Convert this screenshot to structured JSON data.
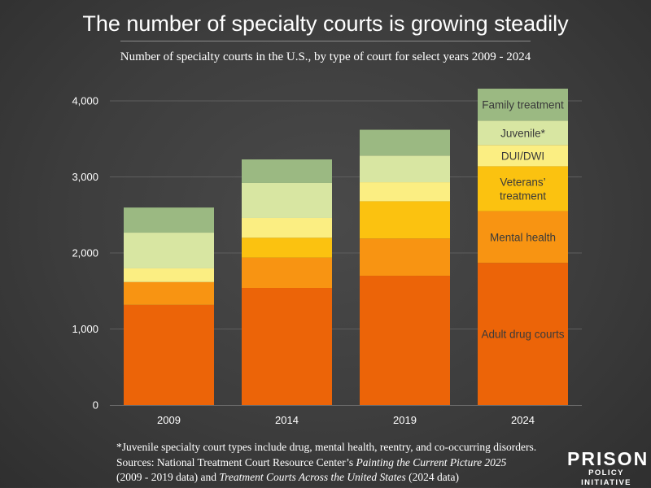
{
  "title": "The number of specialty courts is growing steadily",
  "subtitle": "Number of specialty courts in the U.S., by type of court for select years 2009 - 2024",
  "chart_data": {
    "type": "bar",
    "stacked": true,
    "categories": [
      "2009",
      "2014",
      "2019",
      "2024"
    ],
    "series": [
      {
        "name": "Adult drug courts",
        "label_lines": [
          "Adult drug courts"
        ],
        "color": "#ec6408",
        "values": [
          1317,
          1540,
          1700,
          1870
        ]
      },
      {
        "name": "Mental health",
        "label_lines": [
          "Mental health"
        ],
        "color": "#f89412",
        "values": [
          300,
          400,
          490,
          680
        ]
      },
      {
        "name": "Veterans' treatment",
        "label_lines": [
          "Veterans’",
          "treatment"
        ],
        "color": "#fbc210",
        "values": [
          0,
          260,
          490,
          590
        ]
      },
      {
        "name": "DUI/DWI",
        "label_lines": [
          "DUI/DWI"
        ],
        "color": "#fbee82",
        "values": [
          180,
          260,
          250,
          280
        ]
      },
      {
        "name": "Juvenile*",
        "label_lines": [
          "Juvenile*"
        ],
        "color": "#d8e6a2",
        "values": [
          470,
          460,
          350,
          320
        ]
      },
      {
        "name": "Family treatment",
        "label_lines": [
          "Family treatment"
        ],
        "color": "#9bb982",
        "values": [
          330,
          310,
          340,
          420
        ]
      }
    ],
    "ylim": [
      0,
      4200
    ],
    "yticks": [
      0,
      1000,
      2000,
      3000,
      4000
    ],
    "ytick_labels": [
      "0",
      "1,000",
      "2,000",
      "3,000",
      "4,000"
    ],
    "labels_on_category": "2024",
    "xlabel": "",
    "ylabel": ""
  },
  "notes": [
    {
      "parts": [
        {
          "text": "*Juvenile specialty court types include drug, mental health, reentry, and co-occurring disorders.",
          "italic": false
        }
      ]
    },
    {
      "parts": [
        {
          "text": "Sources: National Treatment Court Resource Center’s ",
          "italic": false
        },
        {
          "text": "Painting the Current Picture 2025",
          "italic": true
        }
      ]
    },
    {
      "parts": [
        {
          "text": "(2009 - 2019 data) and ",
          "italic": false
        },
        {
          "text": "Treatment Courts Across the United States",
          "italic": true
        },
        {
          "text": " (2024 data)",
          "italic": false
        }
      ]
    }
  ],
  "logo": {
    "main": "PRISON",
    "sub": "POLICY INITIATIVE"
  }
}
